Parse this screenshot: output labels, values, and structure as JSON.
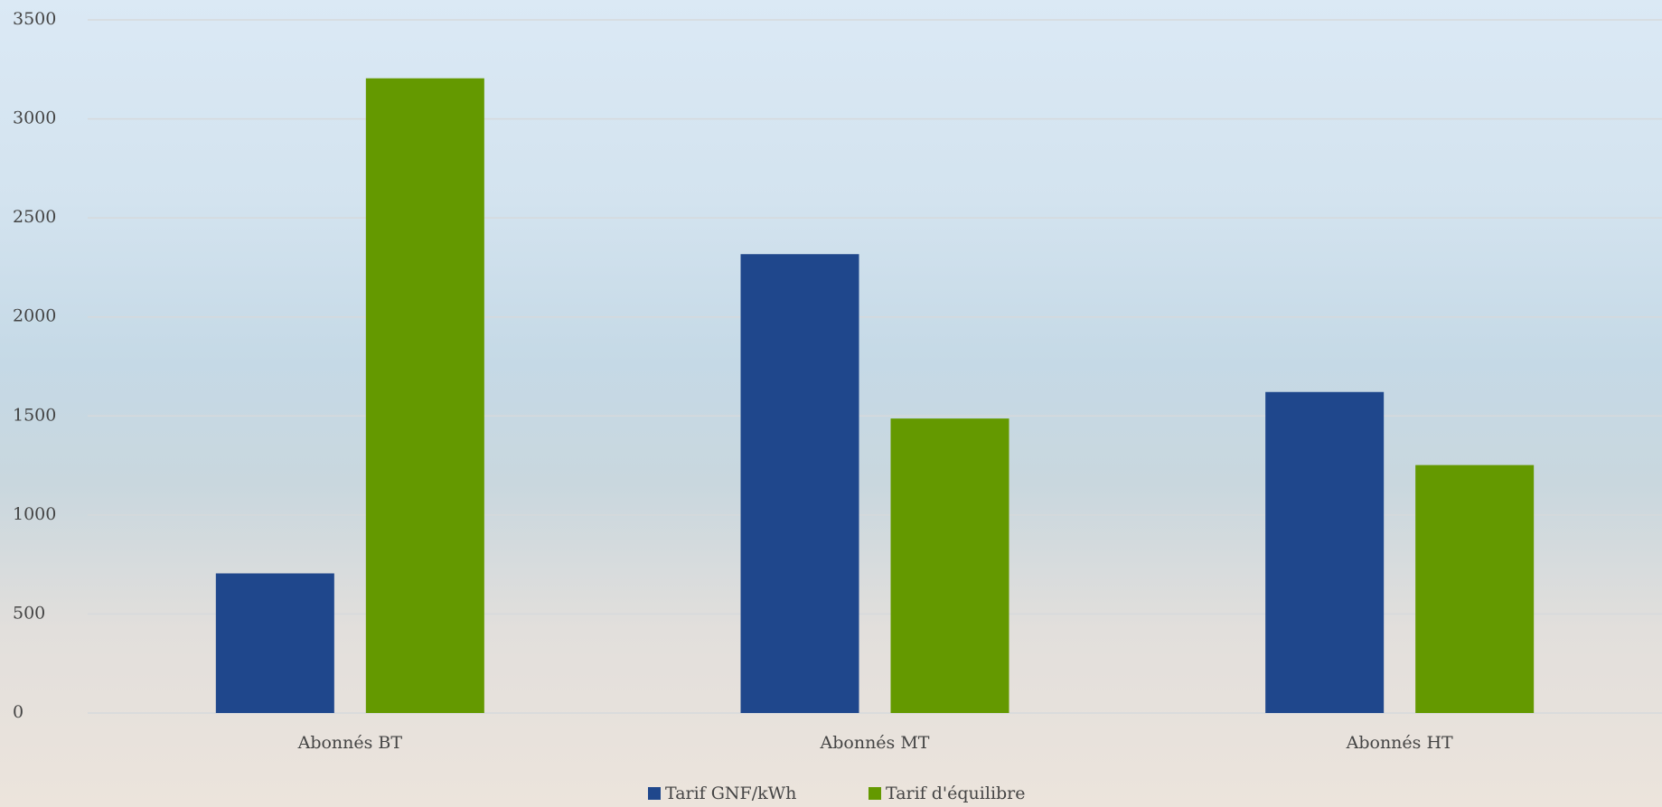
{
  "chart_data": {
    "type": "bar",
    "categories": [
      "Abonnés BT",
      "Abonnés MT",
      "Abonnés HT"
    ],
    "series": [
      {
        "name": "Tarif GNF/kWh",
        "color": "#1f478c",
        "values": [
          705,
          2317,
          1621
        ]
      },
      {
        "name": "Tarif d'équilibre",
        "color": "#649900",
        "values": [
          3205,
          1487,
          1252
        ]
      }
    ],
    "ylim": [
      0,
      3500
    ],
    "yticks": [
      0,
      500,
      1000,
      1500,
      2000,
      2500,
      3000,
      3500
    ],
    "grid": true,
    "legend": "bottom"
  }
}
